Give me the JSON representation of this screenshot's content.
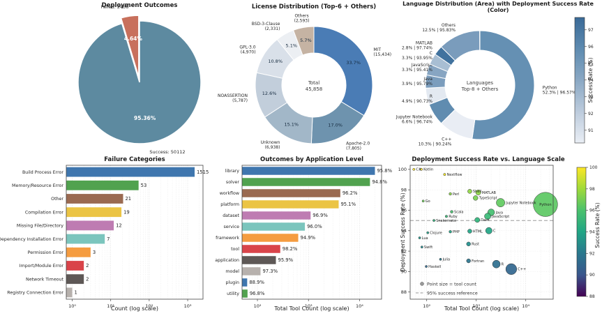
{
  "chart_data": [
    {
      "type": "pie",
      "title": "Deployment Outcomes",
      "slices": [
        {
          "label": "Failed",
          "count": 2438,
          "pct": 4.64,
          "color": "#c8705c",
          "callout": "Failed: 2438",
          "exploded": true
        },
        {
          "label": "Success",
          "count": 50112,
          "pct": 95.36,
          "color": "#5d8aa0",
          "callout": "Success: 50112",
          "exploded": false
        }
      ]
    },
    {
      "type": "pie",
      "subtype": "donut",
      "title": "License Distribution (Top-6 + Others)",
      "center_line1": "Total",
      "center_line2": "45,858",
      "slices": [
        {
          "label": "MIT",
          "sub": "(15,434)",
          "pct": 33.7,
          "color": "#4a7cb5"
        },
        {
          "label": "Apache-2.0",
          "sub": "(7,805)",
          "pct": 17.0,
          "color": "#6e93ae"
        },
        {
          "label": "Unknown",
          "sub": "(6,938)",
          "pct": 15.1,
          "color": "#a2b7c8"
        },
        {
          "label": "NOASSERTION",
          "sub": "(5,787)",
          "pct": 12.6,
          "color": "#c2cedb"
        },
        {
          "label": "GPL-3.0",
          "sub": "(4,970)",
          "pct": 10.8,
          "color": "#d9e0e9"
        },
        {
          "label": "BSD-3-Clause",
          "sub": "(2,331)",
          "pct": 5.1,
          "color": "#eceff3"
        },
        {
          "label": "Others",
          "sub": "(2,593)",
          "pct": 5.7,
          "color": "#c5b3a3"
        }
      ]
    },
    {
      "type": "pie",
      "subtype": "donut",
      "title": "Language Distribution (Area) with Deployment Success Rate (Color)",
      "center_line1": "Languages",
      "center_line2": "Top-8 + Others",
      "colorbar": {
        "label": "Success Rate (%)",
        "vmin": 90.24,
        "vmax": 97.74,
        "ticks": [
          97,
          96,
          95,
          94,
          93,
          92,
          91
        ],
        "stops_top_to_bottom": [
          "#3a6a97",
          "#5e8bb0",
          "#8aa8c4",
          "#bccbdc",
          "#e9eef5"
        ]
      },
      "slices": [
        {
          "label": "Python",
          "sub": "52.3% | 96.57%",
          "pct": 52.3,
          "rate": 96.57,
          "color": "#6590b3"
        },
        {
          "label": "C++",
          "sub": "10.3% | 90.24%",
          "pct": 10.3,
          "rate": 90.24,
          "color": "#e9edf4"
        },
        {
          "label": "Jupyter Notebook",
          "sub": "6.6% | 96.74%",
          "pct": 6.6,
          "rate": 96.74,
          "color": "#608cb0"
        },
        {
          "label": "R",
          "sub": "4.9% | 90.73%",
          "pct": 4.9,
          "rate": 90.73,
          "color": "#e3e9f1"
        },
        {
          "label": "Java",
          "sub": "3.9% | 95.79%",
          "pct": 3.9,
          "rate": 95.79,
          "color": "#7b9dbd"
        },
        {
          "label": "JavaScript",
          "sub": "3.3% | 95.41%",
          "pct": 3.3,
          "rate": 95.41,
          "color": "#87a5c2"
        },
        {
          "label": "C",
          "sub": "3.3% | 93.95%",
          "pct": 3.3,
          "rate": 93.95,
          "color": "#a8bed3"
        },
        {
          "label": "MATLAB",
          "sub": "2.8% | 97.74%",
          "pct": 2.8,
          "rate": 97.74,
          "color": "#41729e"
        },
        {
          "label": "Others",
          "sub": "12.5% | 95.83%",
          "pct": 12.5,
          "rate": 95.83,
          "color": "#7a9cbc"
        }
      ]
    },
    {
      "type": "bar",
      "title": "Failure Categories",
      "xlabel": "Count (log scale)",
      "xlog": true,
      "xmin": 0.7,
      "xmax": 2500,
      "xticks": [
        {
          "value": 1,
          "label": "10⁰"
        },
        {
          "value": 10,
          "label": "10¹"
        },
        {
          "value": 100,
          "label": "10²"
        },
        {
          "value": 1000,
          "label": "10³"
        }
      ],
      "categories": [
        "Build Process Error",
        "Memory/Resource Error",
        "Other",
        "Compilation Error",
        "Missing File/Directory",
        "Dependency Installation Error",
        "Permission Error",
        "Import/Module Error",
        "Network Timeout",
        "Registry Connection Error"
      ],
      "values": [
        1515,
        53,
        21,
        19,
        12,
        7,
        3,
        2,
        2,
        1
      ],
      "value_labels": [
        "1515",
        "53",
        "21",
        "19",
        "12",
        "7",
        "3",
        "2",
        "2",
        "1"
      ],
      "colors": [
        "#3f76ae",
        "#51a24f",
        "#9a6a51",
        "#ebc444",
        "#be7cb2",
        "#7bc5bd",
        "#f59c40",
        "#d9444a",
        "#5e5856",
        "#b7b1ad"
      ]
    },
    {
      "type": "bar",
      "title": "Outcomes by Application Level",
      "xlabel": "Total Tool Count (log scale)",
      "xlog": true,
      "xmin": 50,
      "xmax": 27000,
      "xticks": [
        {
          "value": 100,
          "label": "10²"
        },
        {
          "value": 1000,
          "label": "10³"
        },
        {
          "value": 10000,
          "label": "10⁴"
        }
      ],
      "categories": [
        "library",
        "solver",
        "workflow",
        "platform",
        "dataset",
        "service",
        "framework",
        "tool",
        "application",
        "model",
        "plugin",
        "utility"
      ],
      "values": [
        20000,
        16000,
        4200,
        3900,
        1100,
        850,
        630,
        280,
        230,
        115,
        63,
        64
      ],
      "value_labels": [
        "95.8%",
        "94.8%",
        "96.2%",
        "95.1%",
        "96.9%",
        "96.0%",
        "94.9%",
        "98.2%",
        "95.9%",
        "97.3%",
        "88.9%",
        "96.8%"
      ],
      "colors": [
        "#3f76ae",
        "#51a24f",
        "#9a6a51",
        "#ebc444",
        "#be7cb2",
        "#7bc5bd",
        "#f59c40",
        "#d9444a",
        "#5e5856",
        "#b7b1ad",
        "#3f76ae",
        "#51a24f"
      ]
    },
    {
      "type": "scatter",
      "title": "Deployment Success Rate vs. Language Scale",
      "xlabel": "Total Tool Count (log scale)",
      "ylabel": "Deployment Success Rate (%)",
      "xlog": true,
      "yticks": [
        88,
        90,
        92,
        94,
        96,
        98,
        100
      ],
      "xticks": [
        {
          "value": 100,
          "label": "10²"
        },
        {
          "value": 1000,
          "label": "10³"
        },
        {
          "value": 10000,
          "label": "10⁴"
        }
      ],
      "ref_line": {
        "y": 95
      },
      "legend": {
        "size_note": "Point size = tool count",
        "ref_note": "95% success reference"
      },
      "colorbar": {
        "label": "Success Rate (%)",
        "vmin": 88,
        "vmax": 100,
        "ticks": [
          100,
          98,
          96,
          94,
          92,
          90,
          88
        ],
        "stops_top_to_bottom": [
          "#fde725",
          "#9fda3a",
          "#4ac16d",
          "#21a585",
          "#2a788e",
          "#39568c",
          "#440154"
        ]
      },
      "points": [
        {
          "label": "C#",
          "count": 55,
          "rate": 100.0,
          "color": "#fde725"
        },
        {
          "label": "Kotlin",
          "count": 78,
          "rate": 100.0,
          "color": "#fde725"
        },
        {
          "label": "Nextflow",
          "count": 230,
          "rate": 99.5,
          "color": "#f1e51d"
        },
        {
          "label": "Perl",
          "count": 300,
          "rate": 97.6,
          "color": "#8bd646"
        },
        {
          "label": "Go",
          "count": 85,
          "rate": 96.9,
          "color": "#6ccd5a"
        },
        {
          "label": "Shell",
          "count": 740,
          "rate": 97.85,
          "color": "#90d743"
        },
        {
          "label": "TypeScript",
          "count": 970,
          "rate": 97.2,
          "color": "#7ad151"
        },
        {
          "label": "MATLAB",
          "count": 1100,
          "rate": 97.74,
          "color": "#8ed645"
        },
        {
          "label": "Jupyter Notebook",
          "count": 3100,
          "rate": 96.74,
          "color": "#61ca60"
        },
        {
          "label": "Python",
          "count": 25000,
          "rate": 96.57,
          "color": "#5cc863"
        },
        {
          "label": "Scala",
          "count": 320,
          "rate": 95.85,
          "color": "#46c06f"
        },
        {
          "label": "Ruby",
          "count": 250,
          "rate": 95.4,
          "color": "#3aba76"
        },
        {
          "label": "Java",
          "count": 2000,
          "rate": 95.79,
          "color": "#44bf70"
        },
        {
          "label": "JavaScript",
          "count": 1700,
          "rate": 95.41,
          "color": "#3aba76"
        },
        {
          "label": "Snakemake",
          "count": 140,
          "rate": 95.0,
          "color": "#2fb47c"
        },
        {
          "label": "Dask",
          "count": 1050,
          "rate": 95.05,
          "color": "#30b57c"
        },
        {
          "label": "PHP",
          "count": 300,
          "rate": 93.9,
          "color": "#20a386"
        },
        {
          "label": "HTML",
          "count": 740,
          "rate": 93.95,
          "color": "#20a486"
        },
        {
          "label": "C",
          "count": 1800,
          "rate": 94.0,
          "color": "#21a585"
        },
        {
          "label": "Rust",
          "count": 700,
          "rate": 92.7,
          "color": "#218f8d"
        },
        {
          "label": "Clojure",
          "count": 105,
          "rate": 93.8,
          "color": "#1fa188"
        },
        {
          "label": "Lua",
          "count": 72,
          "rate": 93.3,
          "color": "#1f988b"
        },
        {
          "label": "Swift",
          "count": 80,
          "rate": 92.4,
          "color": "#238a8d"
        },
        {
          "label": "Julia",
          "count": 190,
          "rate": 91.2,
          "color": "#2a788e"
        },
        {
          "label": "Haskell",
          "count": 98,
          "rate": 90.5,
          "color": "#306a8e"
        },
        {
          "label": "Fortran",
          "count": 700,
          "rate": 91.05,
          "color": "#2b758e"
        },
        {
          "label": "R",
          "count": 2550,
          "rate": 90.73,
          "color": "#2e6f8e"
        },
        {
          "label": "C++",
          "count": 5100,
          "rate": 90.24,
          "color": "#31668e"
        }
      ]
    }
  ]
}
